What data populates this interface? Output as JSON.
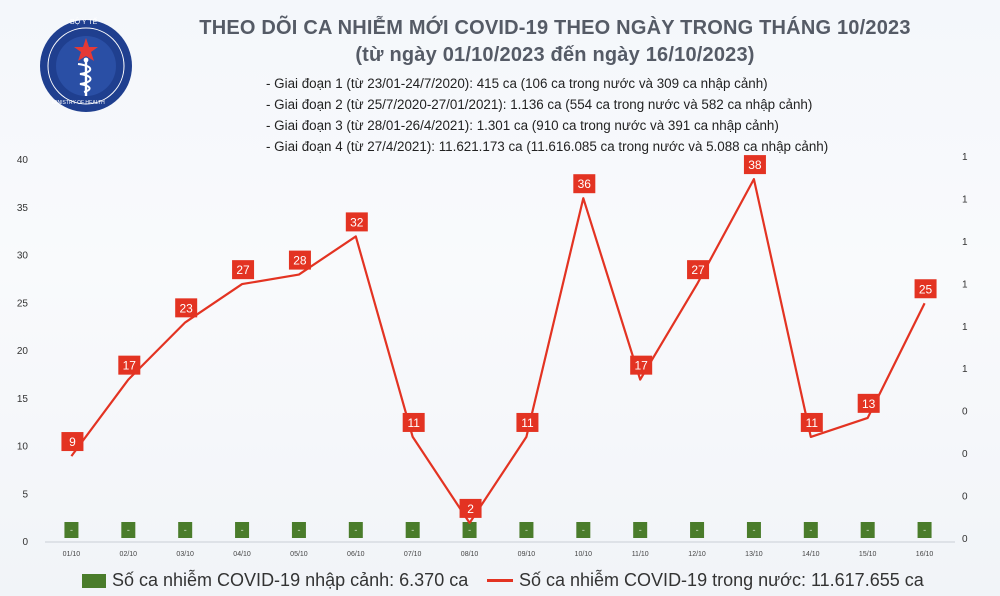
{
  "header": {
    "logo_text": "BỘ Y TẾ",
    "logo_subtext": "MINISTRY OF HEALTH",
    "title": "THEO DÕI CA NHIỄM MỚI COVID-19 THEO NGÀY TRONG THÁNG 10/2023",
    "subtitle": "(từ ngày 01/10/2023 đến ngày 16/10/2023)"
  },
  "notes": [
    "- Giai đoạn 1 (từ 23/01-24/7/2020): 415 ca (106 ca trong nước và 309 ca nhập cảnh)",
    "- Giai đoạn 2 (từ 25/7/2020-27/01/2021): 1.136 ca (554 ca trong nước và 582 ca nhập cảnh)",
    "- Giai đoạn 3 (từ 28/01-26/4/2021): 1.301 ca (910 ca trong nước và 391 ca nhập cảnh)",
    "- Giai đoạn 4 (từ 27/4/2021): 11.621.173 ca (11.616.085 ca trong nước và 5.088 ca nhập cảnh)"
  ],
  "colors": {
    "line": "#e33322",
    "bar": "#4a7c2b",
    "title": "#555b66"
  },
  "chart_data": {
    "type": "line",
    "categories": [
      "01/10",
      "02/10",
      "03/10",
      "04/10",
      "05/10",
      "06/10",
      "07/10",
      "08/10",
      "09/10",
      "10/10",
      "11/10",
      "12/10",
      "13/10",
      "14/10",
      "15/10",
      "16/10"
    ],
    "y_ticks": [
      "0",
      "5",
      "10",
      "15",
      "20",
      "25",
      "30",
      "35",
      "40"
    ],
    "ylim": [
      0,
      40
    ],
    "right_ticks": [
      "0",
      "0",
      "0",
      "0",
      "1",
      "1",
      "1",
      "1",
      "1",
      "1"
    ],
    "series": [
      {
        "name": "Số ca nhiễm COVID-19 trong nước: 11.617.655 ca",
        "type": "line",
        "color": "#e33322",
        "values": [
          9,
          17,
          23,
          27,
          28,
          32,
          11,
          2,
          11,
          36,
          17,
          27,
          38,
          11,
          13,
          25
        ]
      },
      {
        "name": "Số ca nhiễm COVID-19 nhập cảnh: 6.370 ca",
        "type": "bar",
        "color": "#4a7c2b",
        "values": [
          0,
          0,
          0,
          0,
          0,
          0,
          0,
          0,
          0,
          0,
          0,
          0,
          0,
          0,
          0,
          0
        ],
        "labels": [
          "-",
          "-",
          "-",
          "-",
          "-",
          "-",
          "-",
          "-",
          "-",
          "-",
          "-",
          "-",
          "-",
          "-",
          "-",
          "-"
        ]
      }
    ],
    "grid": false,
    "legend_position": "bottom"
  }
}
